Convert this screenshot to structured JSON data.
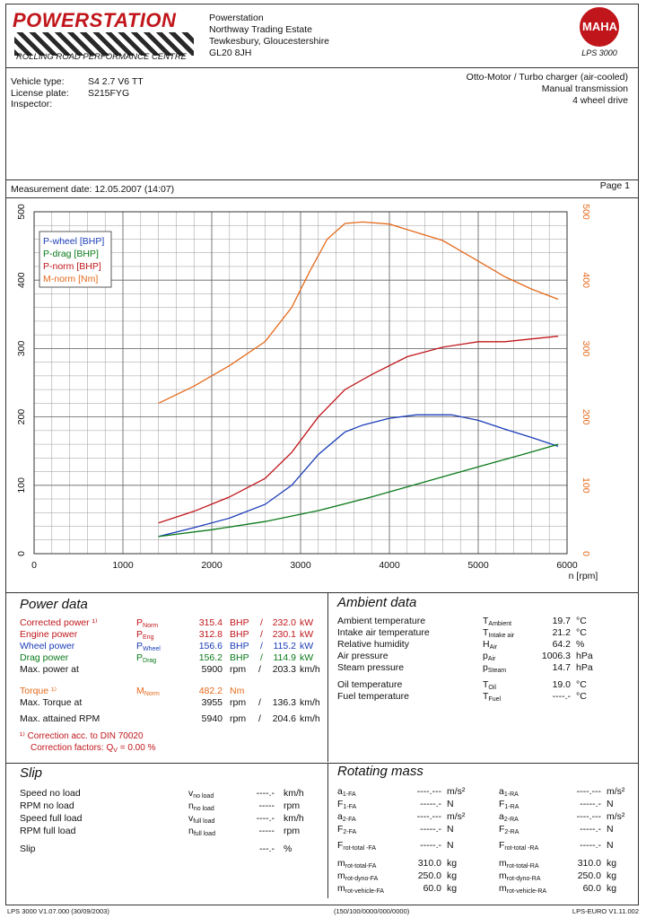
{
  "header": {
    "logo_text": "POWERSTATION",
    "subtitle": "ROLLING ROAD PERFORMANCE CENTRE",
    "address": [
      "Powerstation",
      "Northway Trading Estate",
      "Tewkesbury, Gloucestershire",
      "GL20 8JH"
    ],
    "maha_logo": "MAHA",
    "maha_model": "LPS 3000"
  },
  "vehicle": {
    "type_label": "Vehicle type:",
    "type_value": "S4 2.7 V6 TT",
    "plate_label": "License plate:",
    "plate_value": "S215FYG",
    "inspector_label": "Inspector:",
    "engine": "Otto-Motor / Turbo charger (air-cooled)",
    "transmission": "Manual transmission",
    "drive": "4 wheel drive"
  },
  "measurement": {
    "label": "Measurement date: 12.05.2007 (14:07)",
    "page": "Page 1"
  },
  "chart_data": {
    "type": "line",
    "xlabel": "n [rpm]",
    "xlim": [
      0,
      6000
    ],
    "xticks": [
      "0",
      "1000",
      "2000",
      "3000",
      "4000",
      "5000",
      "6000"
    ],
    "ylim_left": [
      0,
      500
    ],
    "yticks_left": [
      "0",
      "100",
      "200",
      "300",
      "400",
      "500"
    ],
    "ylim_right": [
      0,
      500
    ],
    "yticks_right": [
      "0",
      "100",
      "200",
      "300",
      "400",
      "500"
    ],
    "legend_placement": "top-left",
    "series": [
      {
        "name": "P-wheel [BHP]",
        "color": "#1a3cb8",
        "x": [
          1400,
          1800,
          2200,
          2600,
          2900,
          3200,
          3500,
          3700,
          4000,
          4300,
          4700,
          5000,
          5300,
          5600,
          5900
        ],
        "values": [
          25,
          38,
          52,
          72,
          100,
          145,
          178,
          188,
          198,
          203,
          203,
          195,
          182,
          170,
          157
        ]
      },
      {
        "name": "P-drag [BHP]",
        "color": "#0a7a1a",
        "x": [
          1400,
          2000,
          2600,
          3200,
          3800,
          4400,
          5000,
          5500,
          5900
        ],
        "values": [
          25,
          35,
          47,
          63,
          83,
          105,
          127,
          145,
          160
        ]
      },
      {
        "name": "P-norm [BHP]",
        "color": "#c0161b",
        "x": [
          1400,
          1800,
          2200,
          2600,
          2900,
          3200,
          3500,
          3800,
          4200,
          4600,
          5000,
          5300,
          5600,
          5900
        ],
        "values": [
          45,
          62,
          83,
          110,
          148,
          200,
          240,
          262,
          288,
          302,
          310,
          310,
          314,
          318
        ]
      },
      {
        "name": "M-norm [Nm]",
        "color": "#e46a1c",
        "x": [
          1400,
          1800,
          2200,
          2600,
          2900,
          3100,
          3300,
          3500,
          3700,
          4000,
          4300,
          4600,
          5000,
          5300,
          5600,
          5900
        ],
        "values": [
          220,
          245,
          275,
          310,
          360,
          412,
          460,
          483,
          485,
          482,
          470,
          458,
          428,
          405,
          387,
          372
        ]
      }
    ]
  },
  "power_data": {
    "title": "Power data",
    "rows": [
      {
        "label": "Corrected power ¹⁾",
        "sym": "P",
        "sub": "Norm",
        "v1": "315.4",
        "u1": "BHP",
        "v2": "232.0",
        "u2": "kW",
        "cls": "red"
      },
      {
        "label": "Engine power",
        "sym": "P",
        "sub": "Eng",
        "v1": "312.8",
        "u1": "BHP",
        "v2": "230.1",
        "u2": "kW",
        "cls": "red"
      },
      {
        "label": "Wheel power",
        "sym": "P",
        "sub": "Wheel",
        "v1": "156.6",
        "u1": "BHP",
        "v2": "115.2",
        "u2": "kW",
        "cls": "blue"
      },
      {
        "label": "Drag power",
        "sym": "P",
        "sub": "Drag",
        "v1": "156.2",
        "u1": "BHP",
        "v2": "114.9",
        "u2": "kW",
        "cls": "green"
      },
      {
        "label": "Max. power at",
        "sym": "",
        "sub": "",
        "v1": "5900",
        "u1": "rpm",
        "v2": "203.3",
        "u2": "km/h",
        "cls": ""
      }
    ],
    "torque_label": "Torque ¹⁾",
    "torque_sym": "M",
    "torque_sub": "Norm",
    "torque_val": "482.2",
    "torque_unit": "Nm",
    "max_torque_label": "Max. Torque at",
    "max_torque_rpm": "3955",
    "max_torque_rpm_u": "rpm",
    "max_torque_kmh": "136.3",
    "max_torque_kmh_u": "km/h",
    "max_rpm_label": "Max. attained RPM",
    "max_rpm": "5940",
    "max_rpm_u": "rpm",
    "max_rpm_kmh": "204.6",
    "max_rpm_kmh_u": "km/h",
    "correction1": "¹⁾ Correction acc. to DIN 70020",
    "correction2": "Correction factors: Q",
    "correction2_sub": "V",
    "correction2_val": "=  0.00 %"
  },
  "ambient_data": {
    "title": "Ambient data",
    "rows": [
      {
        "label": "Ambient temperature",
        "sym": "T",
        "sub": "Ambient",
        "val": "19.7",
        "unit": "°C"
      },
      {
        "label": "Intake air temperature",
        "sym": "T",
        "sub": "Intake air",
        "val": "21.2",
        "unit": "°C"
      },
      {
        "label": "Relative humidity",
        "sym": "H",
        "sub": "Air",
        "val": "64.2",
        "unit": "%"
      },
      {
        "label": "Air pressure",
        "sym": "p",
        "sub": "Air",
        "val": "1006.3",
        "unit": "hPa"
      },
      {
        "label": "Steam pressure",
        "sym": "p",
        "sub": "Steam",
        "val": "14.7",
        "unit": "hPa"
      },
      {
        "label": "Oil temperature",
        "sym": "T",
        "sub": "Oil",
        "val": "19.0",
        "unit": "°C"
      },
      {
        "label": "Fuel temperature",
        "sym": "T",
        "sub": "Fuel",
        "val": "----.-",
        "unit": "°C"
      }
    ]
  },
  "slip": {
    "title": "Slip",
    "rows": [
      {
        "label": "Speed no load",
        "sym": "v",
        "sub": "no load",
        "val": "----.-",
        "unit": "km/h"
      },
      {
        "label": "RPM no load",
        "sym": "n",
        "sub": "no load",
        "val": "-----",
        "unit": "rpm"
      },
      {
        "label": "Speed full load",
        "sym": "v",
        "sub": "full load",
        "val": "----.-",
        "unit": "km/h"
      },
      {
        "label": "RPM full load",
        "sym": "n",
        "sub": "full load",
        "val": "-----",
        "unit": "rpm"
      },
      {
        "label": "Slip",
        "sym": "",
        "sub": "",
        "val": "---.-",
        "unit": "%"
      }
    ]
  },
  "rotating_mass": {
    "title": "Rotating mass",
    "left": [
      {
        "sym": "a",
        "sub": "1-FA",
        "val": "----.---",
        "unit": "m/s²"
      },
      {
        "sym": "F",
        "sub": "1-FA",
        "val": "-----.-",
        "unit": "N"
      },
      {
        "sym": "a",
        "sub": "2-FA",
        "val": "----.---",
        "unit": "m/s²"
      },
      {
        "sym": "F",
        "sub": "2-FA",
        "val": "-----.-",
        "unit": "N"
      },
      {
        "sym": "F",
        "sub": "rot-total -FA",
        "val": "-----.-",
        "unit": "N"
      },
      {
        "sym": "m",
        "sub": "rot-total-FA",
        "val": "310.0",
        "unit": "kg"
      },
      {
        "sym": "m",
        "sub": "rot-dyno-FA",
        "val": "250.0",
        "unit": "kg"
      },
      {
        "sym": "m",
        "sub": "rot-vehicle-FA",
        "val": "60.0",
        "unit": "kg"
      }
    ],
    "right": [
      {
        "sym": "a",
        "sub": "1-RA",
        "val": "----.---",
        "unit": "m/s²"
      },
      {
        "sym": "F",
        "sub": "1-RA",
        "val": "-----.-",
        "unit": "N"
      },
      {
        "sym": "a",
        "sub": "2-RA",
        "val": "----.---",
        "unit": "m/s²"
      },
      {
        "sym": "F",
        "sub": "2-RA",
        "val": "-----.-",
        "unit": "N"
      },
      {
        "sym": "F",
        "sub": "rot-total -RA",
        "val": "-----.-",
        "unit": "N"
      },
      {
        "sym": "m",
        "sub": "rot-total-RA",
        "val": "310.0",
        "unit": "kg"
      },
      {
        "sym": "m",
        "sub": "rot-dyno-RA",
        "val": "250.0",
        "unit": "kg"
      },
      {
        "sym": "m",
        "sub": "rot-vehicle-RA",
        "val": "60.0",
        "unit": "kg"
      }
    ]
  },
  "footer": {
    "left": "LPS 3000 V1.07.000 (30/09/2003)",
    "center": "(150/100/0000/000/0000)",
    "right": "LPS-EURO V1.11.002"
  }
}
